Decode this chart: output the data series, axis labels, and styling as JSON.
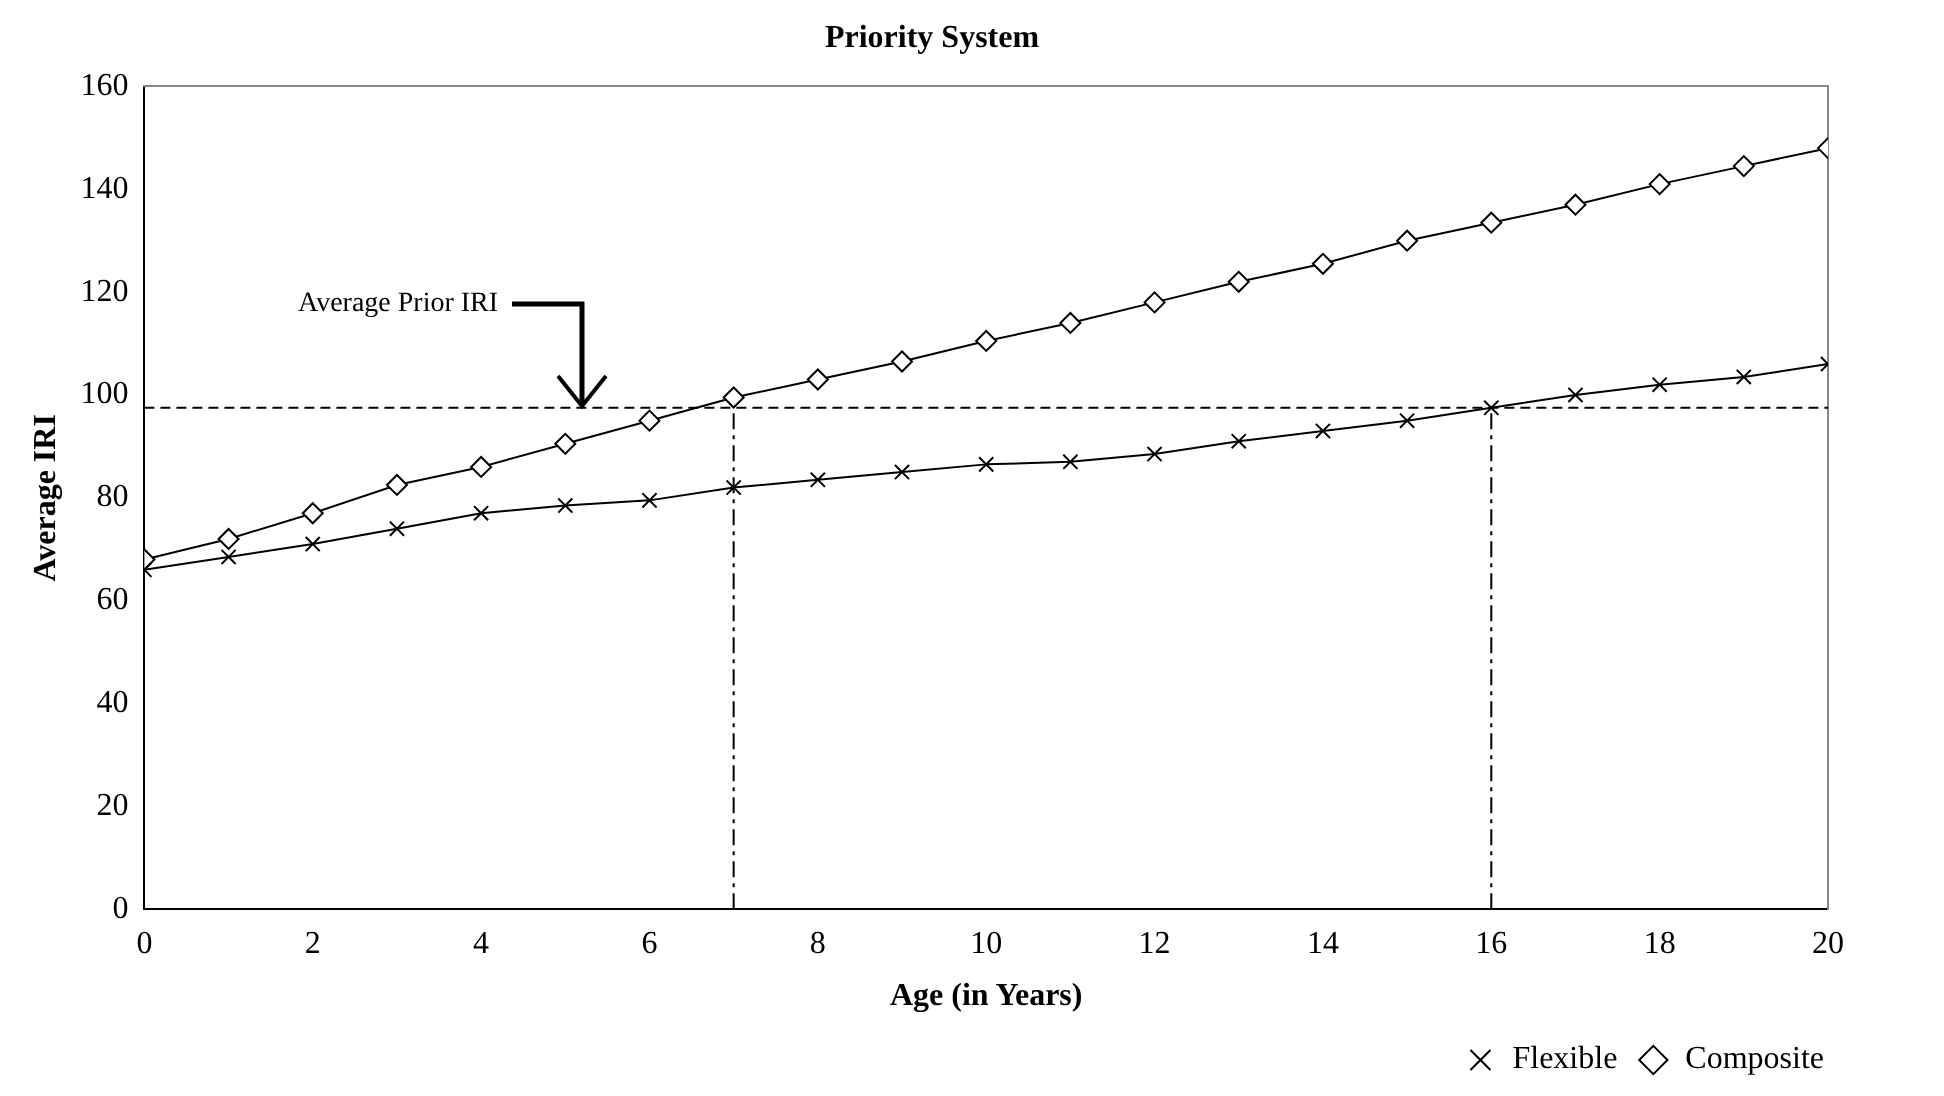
{
  "chart_data": {
    "type": "line",
    "title": "Priority System",
    "xlabel": "Age (in Years)",
    "ylabel": "Average IRI",
    "x": [
      0,
      1,
      2,
      3,
      4,
      5,
      6,
      7,
      8,
      9,
      10,
      11,
      12,
      13,
      14,
      15,
      16,
      17,
      18,
      19,
      20
    ],
    "series": [
      {
        "name": "Flexible",
        "color": "#000000",
        "marker": "cross",
        "values": [
          66,
          68.5,
          71,
          74,
          77,
          78.5,
          79.5,
          82,
          83.5,
          85,
          86.5,
          87,
          88.5,
          91,
          93,
          95,
          97.5,
          100,
          102,
          103.5,
          106
        ]
      },
      {
        "name": "Composite",
        "color": "#000000",
        "marker": "diamond",
        "values": [
          68,
          72,
          77,
          82.5,
          86,
          90.5,
          95,
          99.5,
          103,
          106.5,
          110.5,
          114,
          118,
          122,
          125.5,
          130,
          133.5,
          137,
          141,
          144.5,
          148
        ]
      }
    ],
    "xlim": [
      0,
      20
    ],
    "xticks": [
      0,
      2,
      4,
      6,
      8,
      10,
      12,
      14,
      16,
      18,
      20
    ],
    "ylim": [
      0,
      160
    ],
    "yticks": [
      0,
      20,
      40,
      60,
      80,
      100,
      120,
      140,
      160
    ],
    "grid": false,
    "legend": "bottom right",
    "line_style": "solid",
    "ref_lines": [
      {
        "axis": "y",
        "value": 97.5,
        "line_style": "dashed"
      },
      {
        "axis": "x",
        "value": 7,
        "line_style": "dashdot"
      },
      {
        "axis": "x",
        "value": 16,
        "line_style": "dashdot"
      }
    ],
    "annotations": [
      {
        "text": "Average Prior IRI",
        "x": 5.2,
        "y": 97.5
      }
    ]
  }
}
